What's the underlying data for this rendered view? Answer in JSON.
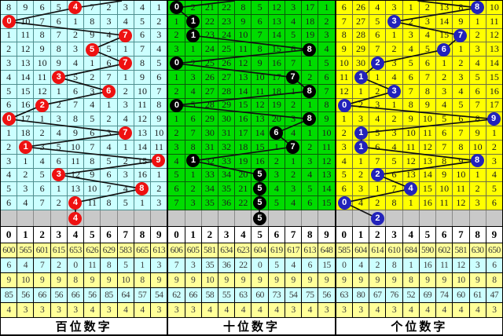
{
  "chart_data": {
    "type": "table",
    "title": "lottery digit trend chart (miss counts per digit column, drawn digit circled)",
    "columns": [
      "0",
      "1",
      "2",
      "3",
      "4",
      "5",
      "6",
      "7",
      "8",
      "9"
    ],
    "colors": {
      "line": "#111111",
      "forecast_row_bg": "#c9c9c9",
      "header_bg": "#ffffff",
      "stats_row_alt": [
        "#ffff99",
        "#ccffff"
      ]
    },
    "panels": [
      {
        "name": "hundreds",
        "title": "百位数字",
        "colors": {
          "cell_bg": "#ccffff",
          "grid_line": "#4f8f8f",
          "marker": "#ee1111"
        },
        "entry_col": 7.3,
        "rows": [
          [
            8,
            9,
            6,
            5,
            4,
            7,
            2,
            3,
            4,
            1
          ],
          [
            0,
            10,
            7,
            6,
            1,
            8,
            3,
            4,
            5,
            2
          ],
          [
            1,
            11,
            8,
            7,
            2,
            9,
            4,
            7,
            6,
            3
          ],
          [
            2,
            12,
            9,
            8,
            3,
            5,
            5,
            1,
            7,
            4
          ],
          [
            3,
            13,
            10,
            9,
            4,
            1,
            6,
            7,
            8,
            5
          ],
          [
            4,
            14,
            11,
            3,
            5,
            2,
            7,
            1,
            9,
            6
          ],
          [
            5,
            15,
            12,
            1,
            6,
            3,
            6,
            2,
            10,
            7
          ],
          [
            6,
            16,
            2,
            2,
            7,
            4,
            1,
            3,
            11,
            8
          ],
          [
            0,
            17,
            1,
            3,
            8,
            5,
            2,
            4,
            12,
            9
          ],
          [
            1,
            18,
            2,
            4,
            9,
            6,
            3,
            7,
            13,
            10
          ],
          [
            2,
            1,
            3,
            5,
            10,
            7,
            4,
            1,
            14,
            11
          ],
          [
            3,
            1,
            4,
            6,
            11,
            8,
            5,
            2,
            15,
            9
          ],
          [
            4,
            2,
            5,
            3,
            12,
            9,
            6,
            3,
            16,
            1
          ],
          [
            5,
            3,
            6,
            1,
            13,
            10,
            7,
            4,
            8,
            2
          ],
          [
            6,
            4,
            7,
            2,
            4,
            11,
            8,
            5,
            1,
            3
          ]
        ],
        "marks": [
          4,
          0,
          7,
          5,
          7,
          3,
          6,
          2,
          0,
          7,
          1,
          9,
          3,
          8,
          4
        ],
        "forecast_mark": 4,
        "stats": [
          [
            600,
            565,
            601,
            615,
            653,
            626,
            629,
            583,
            665,
            613
          ],
          [
            6,
            4,
            7,
            2,
            0,
            11,
            8,
            5,
            1,
            3
          ],
          [
            9,
            10,
            9,
            9,
            8,
            9,
            9,
            10,
            8,
            9
          ],
          [
            85,
            56,
            66,
            56,
            66,
            56,
            85,
            64,
            57,
            54
          ],
          [
            4,
            3,
            3,
            3,
            3,
            4,
            3,
            4,
            4,
            3
          ]
        ]
      },
      {
        "name": "tens",
        "title": "十位数字",
        "colors": {
          "cell_bg": "#00dc00",
          "grid_line": "#0a5a0a",
          "marker": "#000000"
        },
        "entry_col": 4.0,
        "rows": [
          [
            0,
            2,
            21,
            22,
            8,
            5,
            12,
            3,
            17,
            1
          ],
          [
            1,
            1,
            22,
            23,
            9,
            6,
            13,
            4,
            18,
            2
          ],
          [
            2,
            1,
            23,
            24,
            10,
            7,
            14,
            5,
            19,
            3
          ],
          [
            3,
            1,
            24,
            25,
            11,
            8,
            15,
            6,
            8,
            4
          ],
          [
            0,
            2,
            25,
            26,
            12,
            9,
            16,
            7,
            1,
            5
          ],
          [
            1,
            3,
            26,
            27,
            13,
            10,
            17,
            7,
            2,
            6
          ],
          [
            2,
            4,
            27,
            28,
            14,
            11,
            18,
            1,
            8,
            7
          ],
          [
            0,
            5,
            28,
            29,
            15,
            12,
            19,
            2,
            1,
            8
          ],
          [
            1,
            6,
            29,
            30,
            16,
            13,
            20,
            3,
            8,
            9
          ],
          [
            2,
            7,
            30,
            31,
            17,
            14,
            6,
            4,
            1,
            10
          ],
          [
            3,
            8,
            31,
            32,
            18,
            15,
            1,
            7,
            2,
            11
          ],
          [
            4,
            1,
            32,
            33,
            19,
            16,
            2,
            1,
            3,
            12
          ],
          [
            5,
            1,
            33,
            34,
            20,
            5,
            3,
            2,
            4,
            13
          ],
          [
            6,
            2,
            34,
            35,
            21,
            5,
            4,
            3,
            5,
            14
          ],
          [
            7,
            3,
            35,
            36,
            22,
            5,
            5,
            4,
            6,
            15
          ]
        ],
        "marks": [
          0,
          1,
          1,
          8,
          0,
          7,
          8,
          0,
          8,
          6,
          7,
          1,
          5,
          5,
          5
        ],
        "forecast_mark": 5,
        "stats": [
          [
            606,
            605,
            581,
            634,
            623,
            604,
            619,
            617,
            613,
            648
          ],
          [
            7,
            3,
            35,
            36,
            22,
            0,
            5,
            4,
            6,
            15
          ],
          [
            9,
            9,
            10,
            9,
            9,
            9,
            9,
            9,
            9,
            9
          ],
          [
            62,
            66,
            58,
            55,
            63,
            60,
            73,
            54,
            75,
            56
          ],
          [
            3,
            3,
            4,
            4,
            4,
            4,
            4,
            3,
            4,
            3
          ]
        ]
      },
      {
        "name": "units",
        "title": "个位数字",
        "colors": {
          "cell_bg": "#ffff00",
          "grid_line": "#6e6e46",
          "marker": "#2222bb"
        },
        "entry_col": 4.9,
        "rows": [
          [
            6,
            26,
            4,
            3,
            1,
            2,
            13,
            8,
            8,
            10
          ],
          [
            7,
            27,
            5,
            3,
            2,
            3,
            14,
            9,
            1,
            11
          ],
          [
            8,
            28,
            6,
            1,
            3,
            4,
            15,
            7,
            2,
            12
          ],
          [
            9,
            29,
            7,
            2,
            4,
            5,
            6,
            1,
            3,
            13
          ],
          [
            10,
            30,
            2,
            3,
            5,
            6,
            1,
            2,
            4,
            14
          ],
          [
            11,
            1,
            1,
            4,
            6,
            7,
            2,
            3,
            5,
            15
          ],
          [
            12,
            1,
            2,
            3,
            7,
            8,
            3,
            4,
            6,
            16
          ],
          [
            0,
            2,
            3,
            1,
            8,
            9,
            4,
            5,
            7,
            17
          ],
          [
            1,
            3,
            4,
            2,
            9,
            10,
            5,
            6,
            8,
            9
          ],
          [
            2,
            1,
            5,
            3,
            10,
            11,
            6,
            7,
            9,
            1
          ],
          [
            3,
            1,
            6,
            4,
            11,
            12,
            7,
            8,
            10,
            2
          ],
          [
            4,
            1,
            7,
            5,
            12,
            13,
            8,
            9,
            8,
            3
          ],
          [
            5,
            2,
            2,
            6,
            13,
            14,
            9,
            10,
            1,
            4
          ],
          [
            6,
            3,
            1,
            7,
            4,
            15,
            10,
            11,
            2,
            5
          ],
          [
            0,
            4,
            2,
            8,
            1,
            16,
            11,
            12,
            3,
            6
          ]
        ],
        "marks": [
          8,
          3,
          7,
          6,
          2,
          1,
          3,
          0,
          9,
          1,
          1,
          8,
          2,
          4,
          0
        ],
        "forecast_mark": 2,
        "stats": [
          [
            585,
            604,
            614,
            610,
            684,
            590,
            602,
            581,
            630,
            650
          ],
          [
            0,
            4,
            2,
            8,
            1,
            16,
            11,
            12,
            3,
            6
          ],
          [
            9,
            9,
            9,
            9,
            8,
            9,
            9,
            10,
            9,
            8
          ],
          [
            63,
            80,
            67,
            76,
            52,
            69,
            74,
            60,
            61,
            47
          ],
          [
            3,
            3,
            4,
            3,
            4,
            4,
            4,
            4,
            4,
            3
          ]
        ]
      }
    ]
  }
}
